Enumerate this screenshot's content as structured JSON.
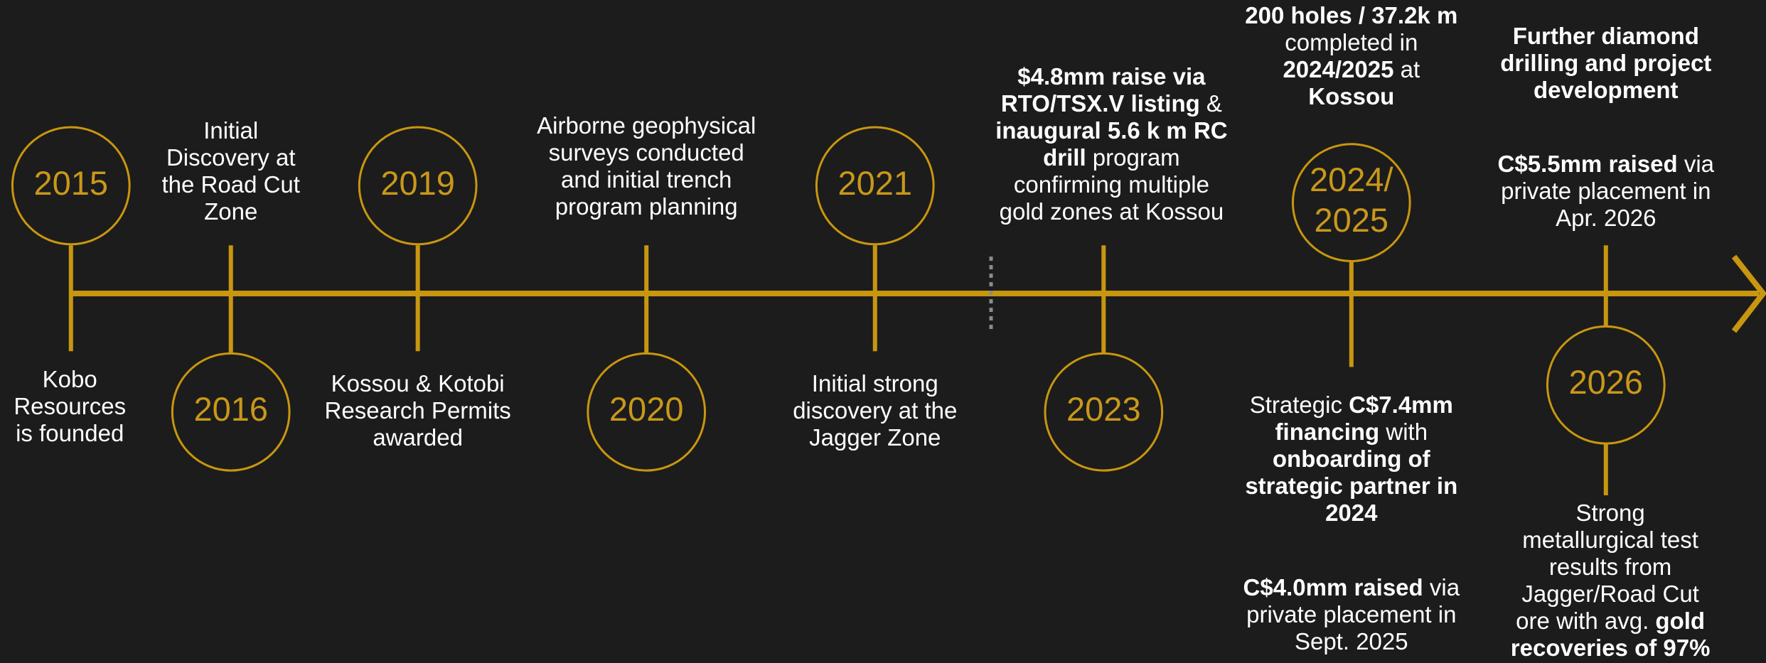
{
  "events": [
    {
      "year": [
        "2015"
      ],
      "notes": [
        [
          [
            {
              "text": "Kobo"
            }
          ],
          [
            {
              "text": "Resources"
            }
          ],
          [
            {
              "text": "is founded"
            }
          ]
        ]
      ]
    },
    {
      "year": [
        "2016"
      ],
      "notes": [
        [
          [
            {
              "text": "Initial"
            }
          ],
          [
            {
              "text": "Discovery at"
            }
          ],
          [
            {
              "text": "the Road Cut"
            }
          ],
          [
            {
              "text": "Zone"
            }
          ]
        ]
      ]
    },
    {
      "year": [
        "2019"
      ],
      "notes": [
        [
          [
            {
              "text": "Kossou & Kotobi"
            }
          ],
          [
            {
              "text": "Research Permits"
            }
          ],
          [
            {
              "text": "awarded"
            }
          ]
        ]
      ]
    },
    {
      "year": [
        "2020"
      ],
      "notes": [
        [
          [
            {
              "text": "Airborne geophysical"
            }
          ],
          [
            {
              "text": "surveys conducted"
            }
          ],
          [
            {
              "text": "and initial trench"
            }
          ],
          [
            {
              "text": "program planning"
            }
          ]
        ]
      ]
    },
    {
      "year": [
        "2021"
      ],
      "notes": [
        [
          [
            {
              "text": "Initial strong"
            }
          ],
          [
            {
              "text": "discovery at the"
            }
          ],
          [
            {
              "text": "Jagger Zone"
            }
          ]
        ]
      ]
    },
    {
      "year": [
        "2023"
      ],
      "notes": [
        [
          [
            {
              "text": "$4.8mm raise via",
              "bold": true
            }
          ],
          [
            {
              "text": "RTO/TSX.V listing",
              "bold": true
            },
            {
              "text": " &"
            }
          ],
          [
            {
              "text": "inaugural 5.6 k m RC",
              "bold": true
            }
          ],
          [
            {
              "text": "drill",
              "bold": true
            },
            {
              "text": " program"
            }
          ],
          [
            {
              "text": "confirming multiple"
            }
          ],
          [
            {
              "text": "gold zones at Kossou"
            }
          ]
        ]
      ]
    },
    {
      "year": [
        "2024/",
        "2025"
      ],
      "notes": [
        [
          [
            {
              "text": "200 holes / 37.2k m",
              "bold": true
            }
          ],
          [
            {
              "text": "completed in"
            }
          ],
          [
            {
              "text": "2024/2025",
              "bold": true
            },
            {
              "text": " at"
            }
          ],
          [
            {
              "text": "Kossou",
              "bold": true
            }
          ]
        ],
        [
          [
            {
              "text": "Strategic "
            },
            {
              "text": "C$7.4mm",
              "bold": true
            }
          ],
          [
            {
              "text": "financing",
              "bold": true
            },
            {
              "text": " with"
            }
          ],
          [
            {
              "text": "onboarding of",
              "bold": true
            }
          ],
          [
            {
              "text": "strategic partner in",
              "bold": true
            }
          ],
          [
            {
              "text": "2024",
              "bold": true
            }
          ]
        ],
        [
          [
            {
              "text": "C$4.0mm raised",
              "bold": true
            },
            {
              "text": " via"
            }
          ],
          [
            {
              "text": "private placement in"
            }
          ],
          [
            {
              "text": "Sept. 2025"
            }
          ]
        ]
      ]
    },
    {
      "year": [
        "2026"
      ],
      "notes": [
        [
          [
            {
              "text": "Further diamond",
              "bold": true
            }
          ],
          [
            {
              "text": "drilling and project",
              "bold": true
            }
          ],
          [
            {
              "text": "development",
              "bold": true
            }
          ]
        ],
        [
          [
            {
              "text": "C$5.5mm raised",
              "bold": true
            },
            {
              "text": " via"
            }
          ],
          [
            {
              "text": "private placement in"
            }
          ],
          [
            {
              "text": "Apr. 2026"
            }
          ]
        ],
        [
          [
            {
              "text": "Strong"
            }
          ],
          [
            {
              "text": "metallurgical test"
            }
          ],
          [
            {
              "text": "results from"
            }
          ],
          [
            {
              "text": "Jagger/Road Cut"
            }
          ],
          [
            {
              "text": "ore with avg. "
            },
            {
              "text": "gold",
              "bold": true
            }
          ],
          [
            {
              "text": "recoveries of 97%",
              "bold": true
            }
          ]
        ]
      ]
    }
  ]
}
